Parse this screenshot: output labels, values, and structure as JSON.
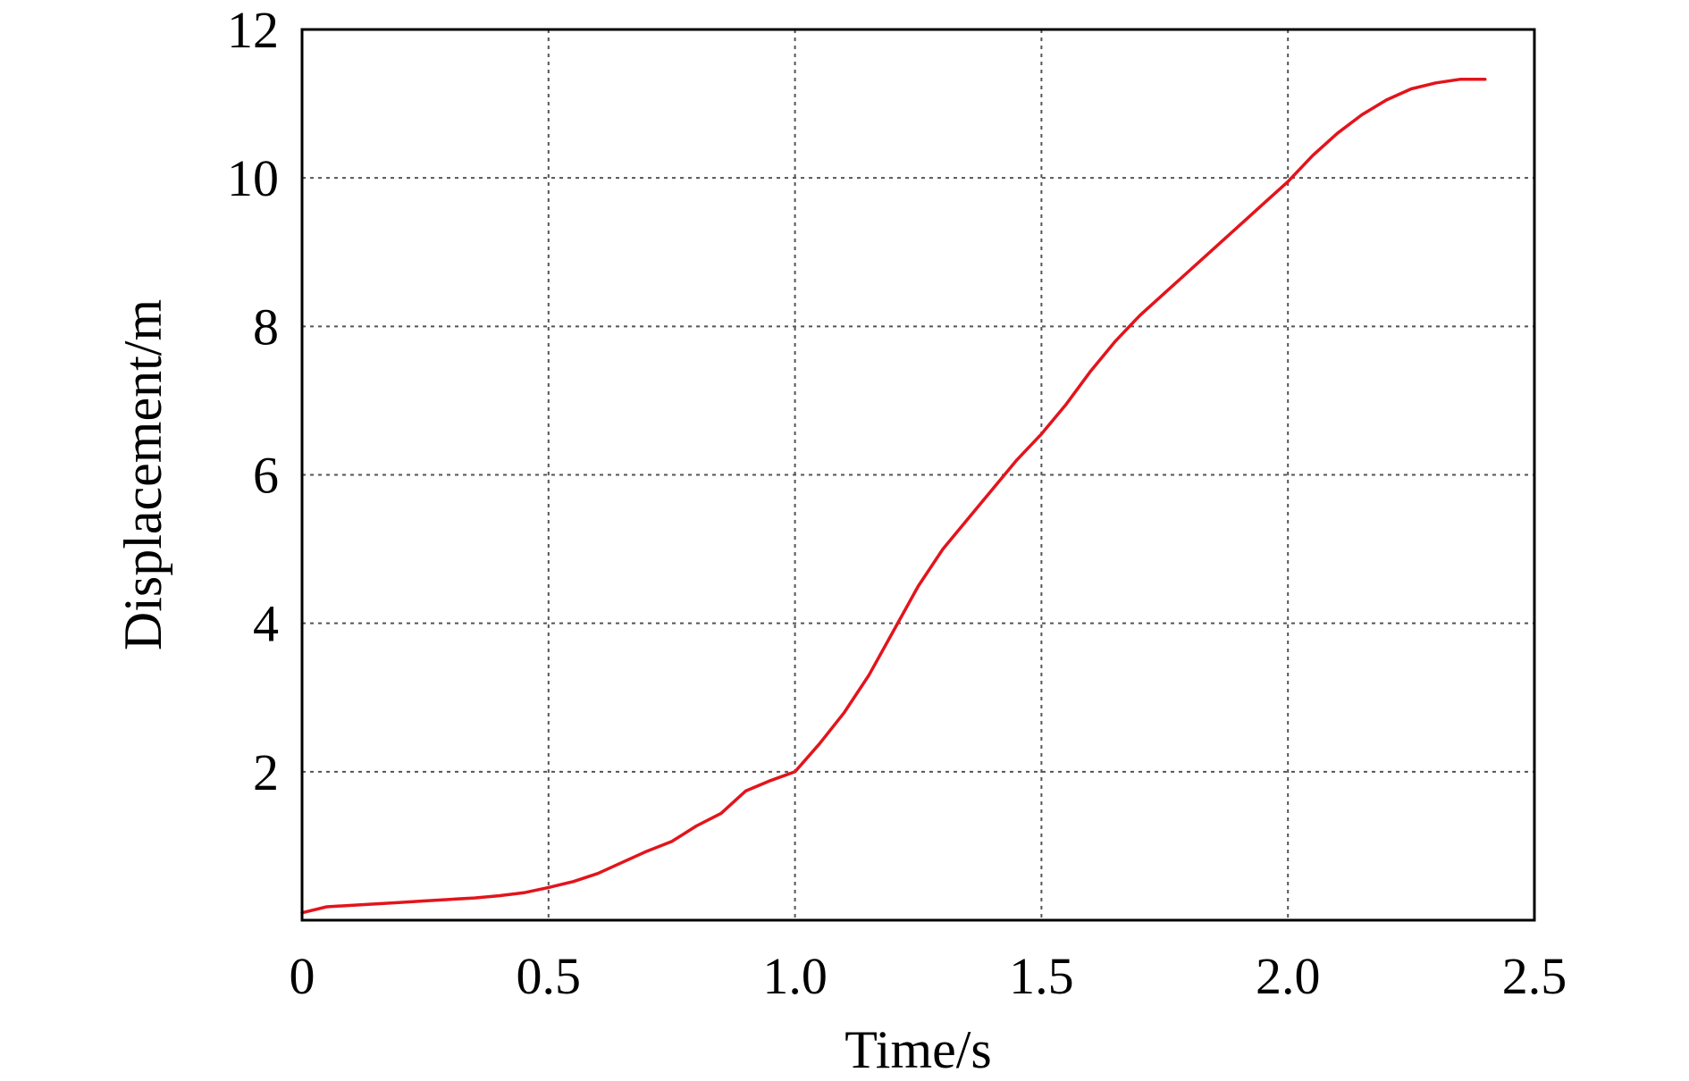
{
  "chart_data": {
    "type": "line",
    "title": "",
    "xlabel": "Time/s",
    "ylabel": "Displacement/m",
    "xlim": [
      0,
      2.5
    ],
    "ylim": [
      0,
      12
    ],
    "x_ticks": [
      0,
      0.5,
      1.0,
      1.5,
      2.0,
      2.5
    ],
    "x_tick_labels": [
      "0",
      "0.5",
      "1.0",
      "1.5",
      "2.0",
      "2.5"
    ],
    "y_ticks": [
      2,
      4,
      6,
      8,
      10,
      12
    ],
    "y_tick_labels": [
      "2",
      "4",
      "6",
      "8",
      "10",
      "12"
    ],
    "grid": true,
    "legend": "none",
    "series": [
      {
        "color": "#e3141c",
        "x": [
          0.0,
          0.05,
          0.1,
          0.15,
          0.2,
          0.25,
          0.3,
          0.35,
          0.4,
          0.45,
          0.5,
          0.55,
          0.6,
          0.65,
          0.7,
          0.75,
          0.8,
          0.85,
          0.9,
          0.95,
          1.0,
          1.05,
          1.1,
          1.15,
          1.2,
          1.25,
          1.3,
          1.35,
          1.4,
          1.45,
          1.5,
          1.55,
          1.6,
          1.65,
          1.7,
          1.75,
          1.8,
          1.85,
          1.9,
          1.95,
          2.0,
          2.05,
          2.1,
          2.15,
          2.2,
          2.25,
          2.3,
          2.35,
          2.4
        ],
        "y": [
          0.1,
          0.18,
          0.2,
          0.22,
          0.24,
          0.26,
          0.28,
          0.3,
          0.33,
          0.37,
          0.44,
          0.52,
          0.63,
          0.78,
          0.93,
          1.06,
          1.27,
          1.44,
          1.74,
          1.88,
          2.0,
          2.38,
          2.8,
          3.3,
          3.9,
          4.5,
          5.0,
          5.4,
          5.8,
          6.2,
          6.55,
          6.95,
          7.4,
          7.8,
          8.15,
          8.45,
          8.75,
          9.05,
          9.35,
          9.65,
          9.95,
          10.3,
          10.6,
          10.85,
          11.05,
          11.2,
          11.28,
          11.33,
          11.33
        ]
      }
    ]
  }
}
